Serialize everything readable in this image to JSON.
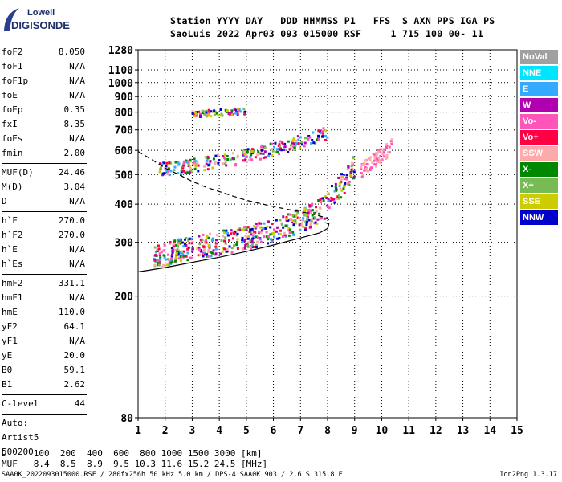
{
  "logo": {
    "line1": "Lowell",
    "line2": "DIGISONDE"
  },
  "header": {
    "line1": "Station YYYY DAY   DDD HHMMSS P1   FFS  S AXN PPS IGA PS",
    "line2": "SaoLuis 2022 Apr03 093 015000 RSF     1 715 100 00- 11"
  },
  "scaled_params": {
    "group1": [
      {
        "name": "foF2",
        "value": "8.050"
      },
      {
        "name": "foF1",
        "value": "N/A"
      },
      {
        "name": "foF1p",
        "value": "N/A"
      },
      {
        "name": "foE",
        "value": "N/A"
      },
      {
        "name": "foEp",
        "value": "0.35"
      },
      {
        "name": "fxI",
        "value": "8.35"
      },
      {
        "name": "foEs",
        "value": "N/A"
      },
      {
        "name": "fmin",
        "value": "2.00"
      }
    ],
    "group2": [
      {
        "name": "MUF(D)",
        "value": "24.46"
      },
      {
        "name": "M(D)",
        "value": "3.04"
      },
      {
        "name": "D",
        "value": "N/A"
      }
    ],
    "group3": [
      {
        "name": "h`F",
        "value": "270.0"
      },
      {
        "name": "h`F2",
        "value": "270.0"
      },
      {
        "name": "h`E",
        "value": "N/A"
      },
      {
        "name": "h`Es",
        "value": "N/A"
      }
    ],
    "group4": [
      {
        "name": "hmF2",
        "value": "331.1"
      },
      {
        "name": "hmF1",
        "value": "N/A"
      },
      {
        "name": "hmE",
        "value": "110.0"
      },
      {
        "name": "yF2",
        "value": "64.1"
      },
      {
        "name": "yF1",
        "value": "N/A"
      },
      {
        "name": "yE",
        "value": "20.0"
      },
      {
        "name": "B0",
        "value": "59.1"
      },
      {
        "name": "B1",
        "value": "2.62"
      }
    ],
    "clevel": {
      "name": "C-level",
      "value": "44"
    },
    "auto": {
      "line1": "Auto:",
      "line2": "Artist5",
      "line3": "500200"
    }
  },
  "legend": [
    {
      "label": "NoVal",
      "color": "#a0a0a0"
    },
    {
      "label": "NNE",
      "color": "#00e5ff"
    },
    {
      "label": "E",
      "color": "#33aaff"
    },
    {
      "label": "W",
      "color": "#b000b0"
    },
    {
      "label": "Vo-",
      "color": "#ff55bb"
    },
    {
      "label": "Vo+",
      "color": "#ff0044"
    },
    {
      "label": "SSW",
      "color": "#ffaaaa"
    },
    {
      "label": "X-",
      "color": "#008800"
    },
    {
      "label": "X+",
      "color": "#77bb55"
    },
    {
      "label": "SSE",
      "color": "#cccc00"
    },
    {
      "label": "NNW",
      "color": "#0000cc"
    }
  ],
  "muf_table": {
    "d_row": "D     100  200  400  600  800 1000 1500 3000 [km]",
    "muf_row": "MUF   8.4  8.5  8.9  9.5 10.3 11.6 15.2 24.5 [MHz]"
  },
  "footer": {
    "left": "SAA0K_2022093015000.RSF / 280fx256h 50 kHz 5.0 km / DPS-4 SAA0K 903 / 2.6 S 315.8 E",
    "right": "Ion2Png 1.3.17"
  },
  "chart_data": {
    "type": "scatter",
    "xlim": [
      1,
      15
    ],
    "ylim": [
      80,
      1280
    ],
    "y_scale": "log",
    "x_ticks": [
      1,
      2,
      3,
      4,
      5,
      6,
      7,
      8,
      9,
      10,
      11,
      12,
      13,
      14,
      15
    ],
    "y_ticks": [
      80,
      200,
      300,
      400,
      500,
      600,
      700,
      800,
      900,
      1000,
      1100,
      1280
    ],
    "grid": true,
    "series": [
      {
        "name": "",
        "role": "F-trace",
        "x": [
          1.6,
          2.0,
          2.5,
          3.0,
          3.5,
          4.0,
          4.5,
          5.0,
          5.5,
          6.0,
          6.5,
          7.0,
          7.5,
          7.8,
          8.0,
          8.2,
          8.5,
          8.8,
          9.0
        ],
        "y": [
          265,
          275,
          285,
          290,
          295,
          300,
          305,
          310,
          320,
          330,
          340,
          355,
          370,
          385,
          400,
          430,
          460,
          500,
          540
        ]
      },
      {
        "name": "",
        "role": "F2-2hop",
        "x": [
          1.8,
          2.5,
          3.0,
          3.5,
          4.0,
          4.5,
          5.0,
          5.5,
          6.0,
          6.5,
          7.0,
          7.5,
          8.0
        ],
        "y": [
          520,
          525,
          535,
          545,
          555,
          560,
          575,
          590,
          605,
          620,
          640,
          660,
          685
        ]
      },
      {
        "name": "",
        "role": "F2-3hop",
        "x": [
          3.0,
          3.5,
          4.0,
          4.5,
          5.0
        ],
        "y": [
          790,
          793,
          795,
          800,
          805
        ]
      },
      {
        "name": "",
        "role": "X-trace",
        "x": [
          9.2,
          9.5,
          9.8,
          10.0,
          10.2,
          10.4
        ],
        "y": [
          510,
          540,
          560,
          580,
          600,
          620
        ]
      }
    ],
    "profile_solid": {
      "x": [
        1,
        2,
        3,
        4,
        5,
        6,
        7,
        7.7,
        8.0,
        8.05,
        7.9
      ],
      "y": [
        240,
        248,
        258,
        268,
        280,
        294,
        310,
        322,
        333,
        345,
        348
      ]
    },
    "profile_dashed": {
      "x": [
        1.0,
        1.5,
        2.0,
        2.5,
        3.0,
        3.5,
        4.0,
        4.5,
        5.0,
        5.5,
        6.0,
        6.5,
        7.0,
        7.5,
        8.0,
        8.05
      ],
      "y": [
        595,
        560,
        525,
        500,
        475,
        455,
        440,
        425,
        412,
        402,
        393,
        385,
        378,
        370,
        360,
        355
      ]
    }
  }
}
